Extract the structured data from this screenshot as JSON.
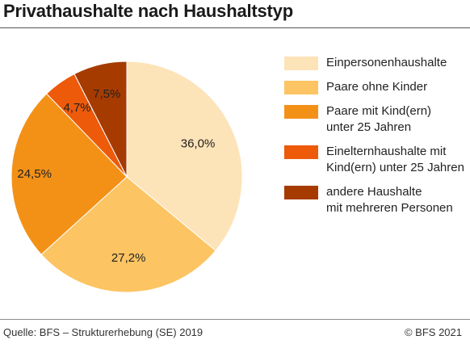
{
  "title": "Privathaushalte nach Haushaltstyp",
  "chart_data": {
    "type": "pie",
    "title": "Privathaushalte nach Haushaltstyp",
    "start_angle_deg": 0,
    "direction": "clockwise",
    "slices": [
      {
        "name": "Einpersonenhaushalte",
        "legend_label": "Einpersonenhaushalte",
        "value": 36.0,
        "label": "36,0%",
        "color": "#fde3b8"
      },
      {
        "name": "Paare ohne Kinder",
        "legend_label": "Paare ohne Kinder",
        "value": 27.2,
        "label": "27,2%",
        "color": "#fcc462"
      },
      {
        "name": "Paare mit Kind(ern) unter 25 Jahren",
        "legend_label": "Paare mit Kind(ern)\nunter 25 Jahren",
        "value": 24.5,
        "label": "24,5%",
        "color": "#f39117"
      },
      {
        "name": "Einelternhaushalte mit Kind(ern) unter 25 Jahren",
        "legend_label": "Einelternhaushalte mit\nKind(ern) unter 25 Jahren",
        "value": 4.7,
        "label": "4,7%",
        "color": "#ec5a0a"
      },
      {
        "name": "andere Haushalte mit mehreren Personen",
        "legend_label": "andere Haushalte\nmit mehreren Personen",
        "value": 7.5,
        "label": "7,5%",
        "color": "#a63b00"
      }
    ],
    "legend_position": "right"
  },
  "footer": {
    "source": "Quelle: BFS – Strukturerhebung (SE) 2019",
    "copyright": "© BFS 2021"
  }
}
